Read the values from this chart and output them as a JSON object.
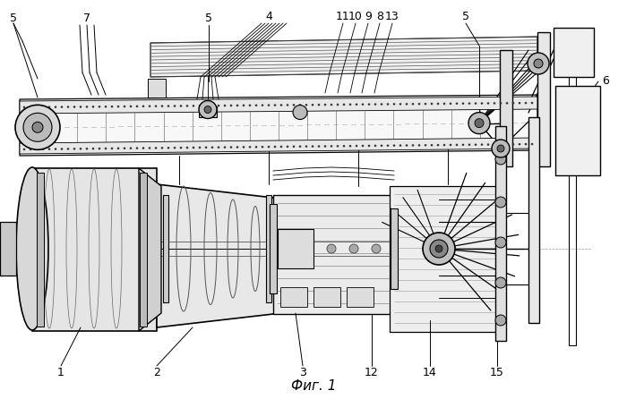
{
  "title": "Фиг. 1",
  "bg_color": "#ffffff",
  "lc": "#000000",
  "figsize": [
    7.0,
    4.46
  ],
  "dpi": 100,
  "label_fs": 9,
  "caption_fs": 11
}
